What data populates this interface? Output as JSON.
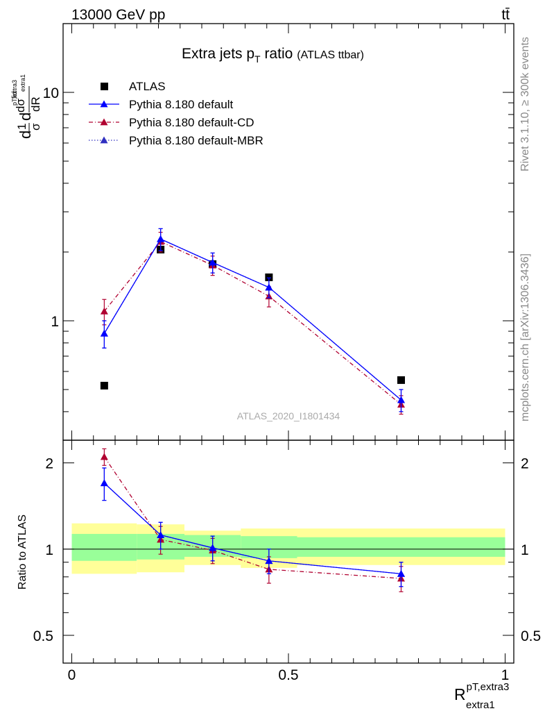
{
  "header": {
    "left": "13000 GeV pp",
    "right": "tt̄"
  },
  "side_labels": {
    "rivet": "Rivet 3.1.10, ≥ 300k events",
    "mcplots": "mcplots.cern.ch [arXiv:1306.3436]"
  },
  "chart_data": [
    {
      "type": "scatter",
      "panel": "main",
      "title": "Extra jets p",
      "title_sub": "T",
      "title_tail": " ratio",
      "title_note": "(ATLAS ttbar)",
      "watermark": "ATLAS_2020_I1801434",
      "ylabel": "dσ/dR (normalized)",
      "y_scale": "log",
      "ylim": [
        0.3,
        20
      ],
      "y_ticks": [
        {
          "value": 1,
          "label": "1"
        },
        {
          "value": 10,
          "label": "10"
        }
      ],
      "xlim": [
        -0.02,
        1.02
      ],
      "legend_position": "top-left",
      "series": [
        {
          "name": "ATLAS",
          "style": "data",
          "color": "#000000",
          "x": [
            0.075,
            0.205,
            0.325,
            0.455,
            0.76
          ],
          "y": [
            0.52,
            2.05,
            1.77,
            1.55,
            0.55
          ]
        },
        {
          "name": "Pythia 8.180 default",
          "style": "solid",
          "color": "#0000ff",
          "x": [
            0.075,
            0.205,
            0.325,
            0.455,
            0.76
          ],
          "y": [
            0.88,
            2.28,
            1.8,
            1.4,
            0.45
          ],
          "err": [
            0.12,
            0.25,
            0.18,
            0.14,
            0.05
          ]
        },
        {
          "name": "Pythia 8.180 default-CD",
          "style": "dashdot",
          "color": "#b00030",
          "x": [
            0.075,
            0.205,
            0.325,
            0.455,
            0.76
          ],
          "y": [
            1.1,
            2.22,
            1.75,
            1.28,
            0.43
          ],
          "err": [
            0.14,
            0.22,
            0.17,
            0.13,
            0.04
          ]
        },
        {
          "name": "Pythia 8.180 default-MBR",
          "style": "dotted",
          "color": "#3030c0",
          "x": [
            0.075,
            0.205,
            0.325,
            0.455,
            0.76
          ],
          "y": [
            0.88,
            2.28,
            1.8,
            1.4,
            0.45
          ],
          "err": [
            0.12,
            0.25,
            0.18,
            0.14,
            0.05
          ]
        }
      ]
    },
    {
      "type": "scatter",
      "panel": "ratio",
      "ylabel": "Ratio to ATLAS",
      "xlabel": "R",
      "xlabel_sup": "pT,extra3",
      "xlabel_sub": "extra1",
      "y_scale": "log",
      "ylim": [
        0.4,
        2.4
      ],
      "y_ticks": [
        {
          "value": 0.5,
          "label": "0.5"
        },
        {
          "value": 1,
          "label": "1"
        },
        {
          "value": 2,
          "label": "2"
        }
      ],
      "x_ticks": [
        {
          "value": 0,
          "label": "0"
        },
        {
          "value": 0.5,
          "label": "0.5"
        },
        {
          "value": 1,
          "label": "1"
        }
      ],
      "xlim": [
        -0.02,
        1.02
      ],
      "bands": [
        {
          "x0": 0.0,
          "x1": 0.15,
          "inner": [
            0.91,
            1.13
          ],
          "outer": [
            0.82,
            1.23
          ]
        },
        {
          "x0": 0.15,
          "x1": 0.26,
          "inner": [
            0.92,
            1.13
          ],
          "outer": [
            0.83,
            1.22
          ]
        },
        {
          "x0": 0.26,
          "x1": 0.39,
          "inner": [
            0.94,
            1.12
          ],
          "outer": [
            0.88,
            1.16
          ]
        },
        {
          "x0": 0.39,
          "x1": 0.52,
          "inner": [
            0.93,
            1.11
          ],
          "outer": [
            0.86,
            1.18
          ]
        },
        {
          "x0": 0.52,
          "x1": 1.0,
          "inner": [
            0.94,
            1.1
          ],
          "outer": [
            0.88,
            1.18
          ]
        }
      ],
      "series": [
        {
          "name": "Pythia 8.180 default",
          "style": "solid",
          "color": "#0000ff",
          "x": [
            0.075,
            0.205,
            0.325,
            0.455,
            0.76
          ],
          "y": [
            1.7,
            1.12,
            1.01,
            0.91,
            0.82
          ],
          "err": [
            0.22,
            0.12,
            0.1,
            0.09,
            0.08
          ]
        },
        {
          "name": "Pythia 8.180 default-CD",
          "style": "dashdot",
          "color": "#b00030",
          "x": [
            0.075,
            0.205,
            0.325,
            0.455,
            0.76
          ],
          "y": [
            2.1,
            1.08,
            0.99,
            0.85,
            0.79
          ],
          "err": [
            0.14,
            0.12,
            0.1,
            0.09,
            0.08
          ]
        },
        {
          "name": "Pythia 8.180 default-MBR",
          "style": "dotted",
          "color": "#3030c0",
          "x": [
            0.075,
            0.205,
            0.325,
            0.455,
            0.76
          ],
          "y": [
            1.7,
            1.12,
            1.01,
            0.91,
            0.82
          ],
          "err": [
            0.22,
            0.12,
            0.1,
            0.09,
            0.08
          ]
        }
      ]
    }
  ]
}
